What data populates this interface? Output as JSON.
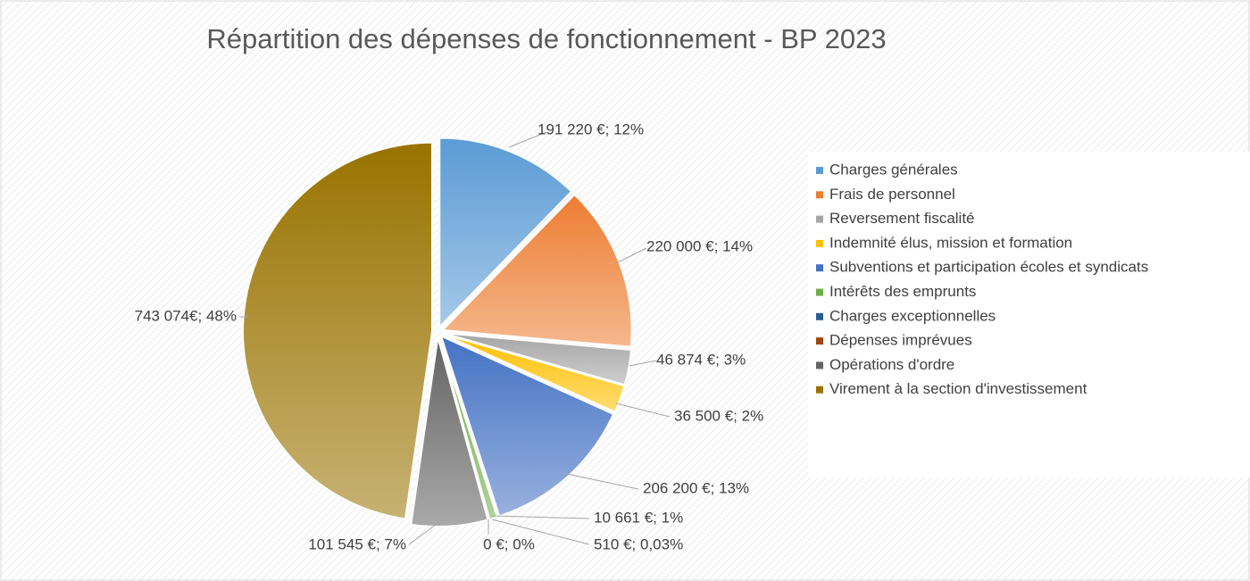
{
  "chart_data": {
    "type": "pie",
    "title": "Répartition des dépenses de fonctionnement - BP 2023",
    "categories": [
      "Charges générales",
      "Frais de personnel",
      "Reversement fiscalité",
      "Indemnité élus, mission et formation",
      "Subventions et participation écoles et syndicats",
      "Intérêts des emprunts",
      "Charges exceptionnelles",
      "Dépenses imprévues",
      "Opérations d'ordre",
      "Virement à la section d'investissement"
    ],
    "values": [
      191220,
      220000,
      46874,
      36500,
      206200,
      10661,
      510,
      0,
      101545,
      743074
    ],
    "value_labels": [
      "191 220 €; 12%",
      "220 000 €; 14%",
      "46 874 €; 3%",
      "36 500 €; 2%",
      "206 200 €; 13%",
      "10 661 €; 1%",
      "510 €; 0,03%",
      "0 €; 0%",
      "101 545 €; 7%",
      "743 074€; 48%"
    ],
    "colors": [
      "#5b9bd5",
      "#ed7d31",
      "#a5a5a5",
      "#ffc000",
      "#4472c4",
      "#70ad47",
      "#255e91",
      "#9e480e",
      "#636363",
      "#997300"
    ],
    "legend": "right"
  }
}
